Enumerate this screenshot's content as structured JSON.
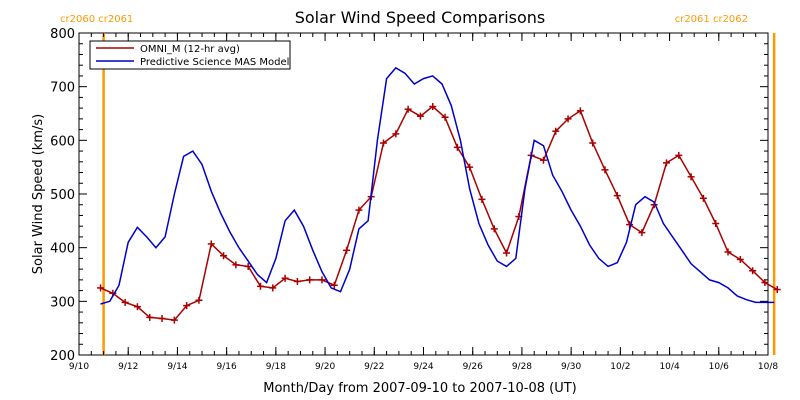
{
  "chart_data": {
    "type": "line",
    "title": "Solar Wind Speed Comparisons",
    "xlabel": "Month/Day from 2007-09-10 to 2007-10-08 (UT)",
    "ylabel": "Solar Wind Speed (km/s)",
    "xlim": [
      "2007-09-10",
      "2007-10-08"
    ],
    "ylim": [
      200,
      800
    ],
    "y_ticks": [
      200,
      300,
      400,
      500,
      600,
      700,
      800
    ],
    "x_ticks": [
      "9/10",
      "9/12",
      "9/14",
      "9/16",
      "9/18",
      "9/20",
      "9/22",
      "9/24",
      "9/26",
      "9/28",
      "9/30",
      "10/2",
      "10/4",
      "10/6",
      "10/8"
    ],
    "x_tick_dates": [
      "2007-09-10",
      "2007-09-12",
      "2007-09-14",
      "2007-09-16",
      "2007-09-18",
      "2007-09-20",
      "2007-09-22",
      "2007-09-24",
      "2007-09-26",
      "2007-09-28",
      "2007-09-30",
      "2007-10-02",
      "2007-10-04",
      "2007-10-06",
      "2007-10-08"
    ],
    "grid": false,
    "legend_position": "top-left",
    "carrington_markers": [
      {
        "date": "2007-09-11 00:00",
        "labels": [
          "cr2060",
          "cr2061"
        ],
        "position": "left",
        "color": "#ff9900"
      },
      {
        "date": "2007-10-08 06:00",
        "labels": [
          "cr2061",
          "cr2062"
        ],
        "position": "right",
        "color": "#ff9900"
      }
    ],
    "series": [
      {
        "name": "OMNI_M (12-hr avg)",
        "color": "#aa0000",
        "marker": "+",
        "x": [
          "2007-09-10 21:00",
          "2007-09-11 09:00",
          "2007-09-11 21:00",
          "2007-09-12 09:00",
          "2007-09-12 21:00",
          "2007-09-13 09:00",
          "2007-09-13 21:00",
          "2007-09-14 09:00",
          "2007-09-14 21:00",
          "2007-09-15 09:00",
          "2007-09-15 21:00",
          "2007-09-16 09:00",
          "2007-09-16 21:00",
          "2007-09-17 09:00",
          "2007-09-17 21:00",
          "2007-09-18 09:00",
          "2007-09-18 21:00",
          "2007-09-19 09:00",
          "2007-09-19 21:00",
          "2007-09-20 09:00",
          "2007-09-20 21:00",
          "2007-09-21 09:00",
          "2007-09-21 21:00",
          "2007-09-22 09:00",
          "2007-09-22 21:00",
          "2007-09-23 09:00",
          "2007-09-23 21:00",
          "2007-09-24 09:00",
          "2007-09-24 21:00",
          "2007-09-25 09:00",
          "2007-09-25 21:00",
          "2007-09-26 09:00",
          "2007-09-26 21:00",
          "2007-09-27 09:00",
          "2007-09-27 21:00",
          "2007-09-28 09:00",
          "2007-09-28 21:00",
          "2007-09-29 09:00",
          "2007-09-29 21:00",
          "2007-09-30 09:00",
          "2007-09-30 21:00",
          "2007-10-01 09:00",
          "2007-10-01 21:00",
          "2007-10-02 09:00",
          "2007-10-02 21:00",
          "2007-10-03 09:00",
          "2007-10-03 21:00",
          "2007-10-04 09:00",
          "2007-10-04 21:00",
          "2007-10-05 09:00",
          "2007-10-05 21:00",
          "2007-10-06 09:00",
          "2007-10-06 21:00",
          "2007-10-07 09:00",
          "2007-10-07 21:00",
          "2007-10-08 09:00"
        ],
        "values": [
          325,
          315,
          298,
          290,
          270,
          268,
          265,
          292,
          302,
          407,
          385,
          368,
          365,
          328,
          325,
          343,
          337,
          340,
          340,
          330,
          395,
          470,
          495,
          595,
          612,
          658,
          645,
          663,
          643,
          587,
          550,
          490,
          435,
          390,
          458,
          572,
          563,
          617,
          640,
          655,
          595,
          545,
          497,
          443,
          428,
          480,
          558,
          572,
          532,
          492,
          445,
          392,
          378,
          357,
          335,
          322
        ]
      },
      {
        "name": "Predictive Science MAS Model",
        "color": "#0000cc",
        "x": [
          "2007-09-10 21:00",
          "2007-09-11 06:00",
          "2007-09-11 15:00",
          "2007-09-12 00:00",
          "2007-09-12 09:00",
          "2007-09-12 18:00",
          "2007-09-13 03:00",
          "2007-09-13 12:00",
          "2007-09-13 21:00",
          "2007-09-14 06:00",
          "2007-09-14 15:00",
          "2007-09-15 00:00",
          "2007-09-15 09:00",
          "2007-09-15 18:00",
          "2007-09-16 03:00",
          "2007-09-16 12:00",
          "2007-09-16 21:00",
          "2007-09-17 06:00",
          "2007-09-17 15:00",
          "2007-09-18 00:00",
          "2007-09-18 09:00",
          "2007-09-18 18:00",
          "2007-09-19 03:00",
          "2007-09-19 12:00",
          "2007-09-19 21:00",
          "2007-09-20 06:00",
          "2007-09-20 15:00",
          "2007-09-21 00:00",
          "2007-09-21 09:00",
          "2007-09-21 18:00",
          "2007-09-22 03:00",
          "2007-09-22 12:00",
          "2007-09-22 21:00",
          "2007-09-23 06:00",
          "2007-09-23 15:00",
          "2007-09-24 00:00",
          "2007-09-24 09:00",
          "2007-09-24 18:00",
          "2007-09-25 03:00",
          "2007-09-25 12:00",
          "2007-09-25 21:00",
          "2007-09-26 06:00",
          "2007-09-26 15:00",
          "2007-09-27 00:00",
          "2007-09-27 09:00",
          "2007-09-27 18:00",
          "2007-09-28 03:00",
          "2007-09-28 12:00",
          "2007-09-28 21:00",
          "2007-09-29 06:00",
          "2007-09-29 15:00",
          "2007-09-30 00:00",
          "2007-09-30 09:00",
          "2007-09-30 18:00",
          "2007-10-01 03:00",
          "2007-10-01 12:00",
          "2007-10-01 21:00",
          "2007-10-02 06:00",
          "2007-10-02 15:00",
          "2007-10-03 00:00",
          "2007-10-03 09:00",
          "2007-10-03 18:00",
          "2007-10-04 03:00",
          "2007-10-04 12:00",
          "2007-10-04 21:00",
          "2007-10-05 06:00",
          "2007-10-05 15:00",
          "2007-10-06 00:00",
          "2007-10-06 09:00",
          "2007-10-06 18:00",
          "2007-10-07 03:00",
          "2007-10-07 12:00",
          "2007-10-07 21:00",
          "2007-10-08 06:00"
        ],
        "values": [
          295,
          300,
          330,
          410,
          438,
          420,
          400,
          420,
          500,
          570,
          580,
          555,
          505,
          465,
          430,
          400,
          375,
          350,
          335,
          380,
          450,
          470,
          440,
          395,
          355,
          325,
          318,
          360,
          435,
          450,
          600,
          715,
          735,
          725,
          705,
          715,
          720,
          705,
          665,
          600,
          510,
          445,
          405,
          375,
          365,
          380,
          510,
          600,
          590,
          535,
          505,
          470,
          440,
          405,
          380,
          365,
          372,
          410,
          480,
          495,
          485,
          445,
          420,
          395,
          370,
          355,
          340,
          335,
          325,
          310,
          303,
          298,
          298,
          298
        ]
      }
    ]
  }
}
